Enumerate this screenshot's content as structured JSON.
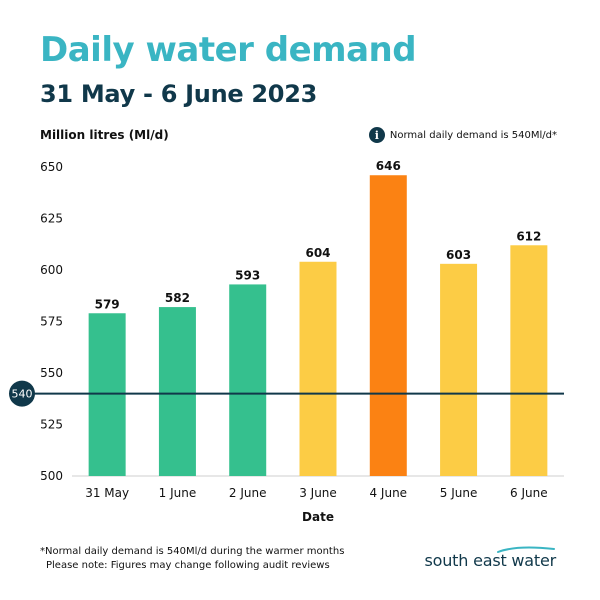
{
  "chart_data": {
    "type": "bar",
    "title": "Daily water demand",
    "subtitle": "31 May - 6 June 2023",
    "ylabel": "Million litres (Ml/d)",
    "xlabel": "Date",
    "categories": [
      "31 May",
      "1 June",
      "2 June",
      "3 June",
      "4 June",
      "5 June",
      "6 June"
    ],
    "values": [
      579,
      582,
      593,
      604,
      646,
      603,
      612
    ],
    "bar_colors": [
      "#35c08e",
      "#35c08e",
      "#35c08e",
      "#fccc45",
      "#fb8213",
      "#fccc45",
      "#fccc45"
    ],
    "ylim": [
      500,
      650
    ],
    "yticks": [
      500,
      525,
      550,
      575,
      600,
      625,
      650
    ],
    "reference_line": {
      "value": 540,
      "label": "540",
      "color": "#10384a"
    },
    "grid": false,
    "legend_note": "Normal daily demand is 540Ml/d*"
  },
  "footnote": {
    "line1": "*Normal daily demand is 540Ml/d during the warmer months",
    "line2": "Please note: Figures may change following audit reviews"
  },
  "logo_text": "south east water",
  "colors": {
    "title": "#3ab5c3",
    "text_dark": "#10384a",
    "logo_wave": "#3ab5c3"
  },
  "icons": {
    "info": "info-icon"
  },
  "info_icon_glyph": "i"
}
